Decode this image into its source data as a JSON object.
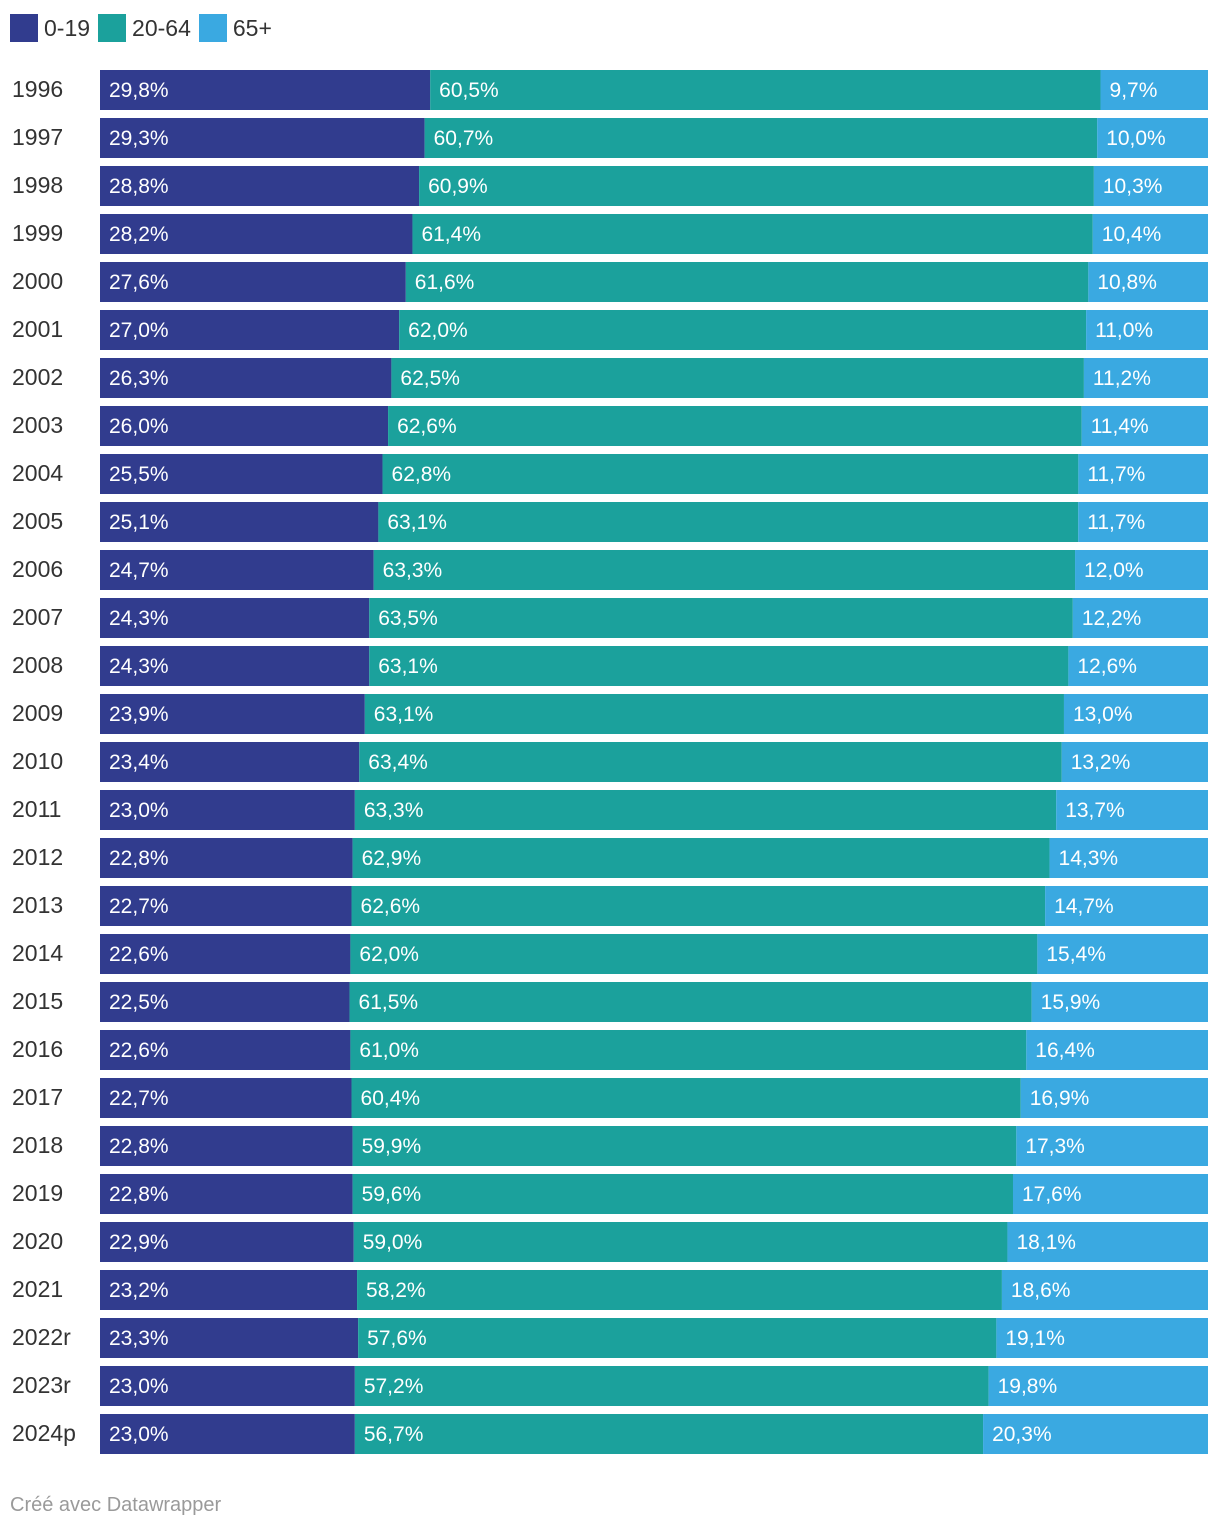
{
  "chart_data": {
    "type": "bar",
    "orientation": "horizontal",
    "stacked": true,
    "normalized_percent": true,
    "legend_position": "top-left",
    "categories": [
      "1996",
      "1997",
      "1998",
      "1999",
      "2000",
      "2001",
      "2002",
      "2003",
      "2004",
      "2005",
      "2006",
      "2007",
      "2008",
      "2009",
      "2010",
      "2011",
      "2012",
      "2013",
      "2014",
      "2015",
      "2016",
      "2017",
      "2018",
      "2019",
      "2020",
      "2021",
      "2022r",
      "2023r",
      "2024p"
    ],
    "series": [
      {
        "name": "0-19",
        "color": "#313c8e",
        "values": [
          29.8,
          29.3,
          28.8,
          28.2,
          27.6,
          27.0,
          26.3,
          26.0,
          25.5,
          25.1,
          24.7,
          24.3,
          24.3,
          23.9,
          23.4,
          23.0,
          22.8,
          22.7,
          22.6,
          22.5,
          22.6,
          22.7,
          22.8,
          22.8,
          22.9,
          23.2,
          23.3,
          23.0,
          23.0
        ],
        "labels": [
          "29,8%",
          "29,3%",
          "28,8%",
          "28,2%",
          "27,6%",
          "27,0%",
          "26,3%",
          "26,0%",
          "25,5%",
          "25,1%",
          "24,7%",
          "24,3%",
          "24,3%",
          "23,9%",
          "23,4%",
          "23,0%",
          "22,8%",
          "22,7%",
          "22,6%",
          "22,5%",
          "22,6%",
          "22,7%",
          "22,8%",
          "22,8%",
          "22,9%",
          "23,2%",
          "23,3%",
          "23,0%",
          "23,0%"
        ]
      },
      {
        "name": "20-64",
        "color": "#1ba19c",
        "values": [
          60.5,
          60.7,
          60.9,
          61.4,
          61.6,
          62.0,
          62.5,
          62.6,
          62.8,
          63.1,
          63.3,
          63.5,
          63.1,
          63.1,
          63.4,
          63.3,
          62.9,
          62.6,
          62.0,
          61.5,
          61.0,
          60.4,
          59.9,
          59.6,
          59.0,
          58.2,
          57.6,
          57.2,
          56.7
        ],
        "labels": [
          "60,5%",
          "60,7%",
          "60,9%",
          "61,4%",
          "61,6%",
          "62,0%",
          "62,5%",
          "62,6%",
          "62,8%",
          "63,1%",
          "63,3%",
          "63,5%",
          "63,1%",
          "63,1%",
          "63,4%",
          "63,3%",
          "62,9%",
          "62,6%",
          "62,0%",
          "61,5%",
          "61,0%",
          "60,4%",
          "59,9%",
          "59,6%",
          "59,0%",
          "58,2%",
          "57,6%",
          "57,2%",
          "56,7%"
        ]
      },
      {
        "name": "65+",
        "color": "#3aa9e1",
        "values": [
          9.7,
          10.0,
          10.3,
          10.4,
          10.8,
          11.0,
          11.2,
          11.4,
          11.7,
          11.7,
          12.0,
          12.2,
          12.6,
          13.0,
          13.2,
          13.7,
          14.3,
          14.7,
          15.4,
          15.9,
          16.4,
          16.9,
          17.3,
          17.6,
          18.1,
          18.6,
          19.1,
          19.8,
          20.3
        ],
        "labels": [
          "9,7%",
          "10,0%",
          "10,3%",
          "10,4%",
          "10,8%",
          "11,0%",
          "11,2%",
          "11,4%",
          "11,7%",
          "11,7%",
          "12,0%",
          "12,2%",
          "12,6%",
          "13,0%",
          "13,2%",
          "13,7%",
          "14,3%",
          "14,7%",
          "15,4%",
          "15,9%",
          "16,4%",
          "16,9%",
          "17,3%",
          "17,6%",
          "18,1%",
          "18,6%",
          "19,1%",
          "19,8%",
          "20,3%"
        ]
      }
    ],
    "xlim": [
      0,
      100
    ]
  },
  "footer": {
    "credit": "Créé avec Datawrapper"
  }
}
